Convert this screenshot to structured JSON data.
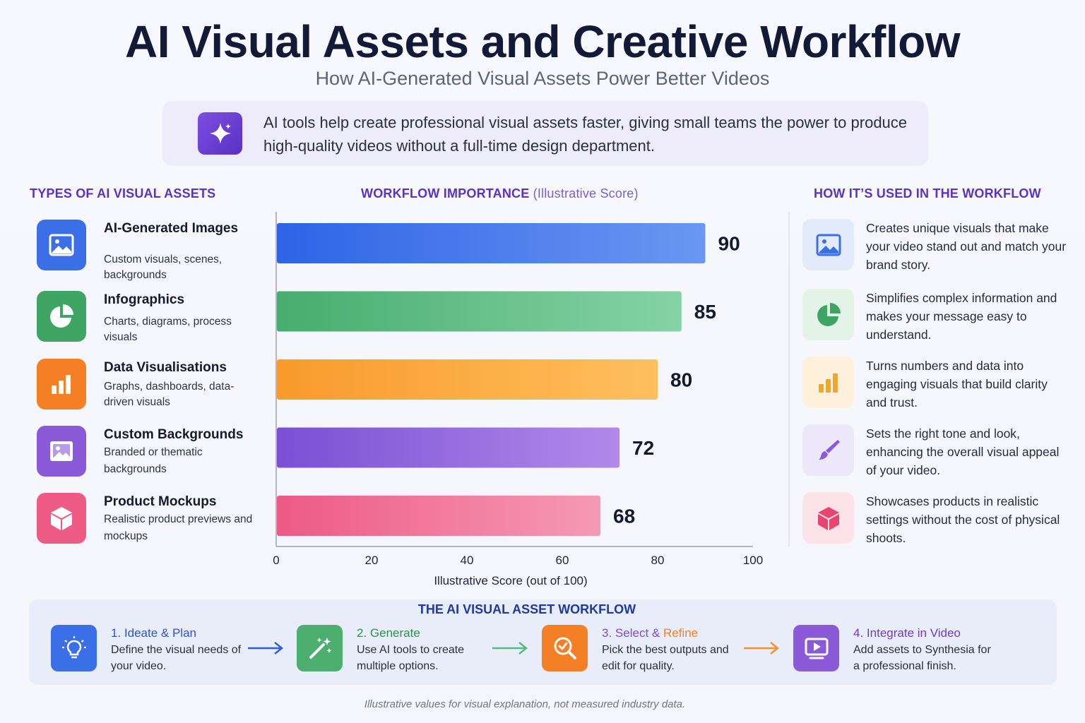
{
  "header": {
    "title": "AI Visual Assets and Creative Workflow",
    "subtitle": "How AI-Generated Visual Assets Power Better Videos",
    "intro": "AI tools help create professional visual assets faster, giving small teams the power to produce high-quality videos without a full-time design department."
  },
  "left": {
    "heading": "TYPES OF AI VISUAL ASSETS",
    "items": [
      {
        "name": "AI-Generated Images",
        "desc": "Custom visuals, scenes, backgrounds",
        "icon": "image-icon",
        "color": "#3b6fe8"
      },
      {
        "name": "Infographics",
        "desc": "Charts, diagrams, process visuals",
        "icon": "pie-chart-icon",
        "color": "#3fa564"
      },
      {
        "name": "Data Visualisations",
        "desc": "Graphs, dashboards, data-driven visuals",
        "icon": "bar-chart-icon",
        "color": "#f57f24"
      },
      {
        "name": "Custom Backgrounds",
        "desc": "Branded or thematic backgrounds",
        "icon": "background-image-icon",
        "color": "#8a5ad8"
      },
      {
        "name": "Product Mockups",
        "desc": "Realistic product previews and mockups",
        "icon": "box-icon",
        "color": "#ee5c86"
      }
    ]
  },
  "chart_heading": {
    "bold": "WORKFLOW IMPORTANCE",
    "light": "(Illustrative Score)"
  },
  "chart_data": {
    "type": "bar",
    "orientation": "horizontal",
    "categories": [
      "AI-Generated Images",
      "Infographics",
      "Data Visualisations",
      "Custom Backgrounds",
      "Product Mockups"
    ],
    "values": [
      90,
      85,
      80,
      72,
      68
    ],
    "data_labels": [
      "90",
      "85",
      "80",
      "72",
      "68"
    ],
    "colors": [
      [
        "#2f63e6",
        "#6a97f2"
      ],
      [
        "#47ad6e",
        "#86d3a4"
      ],
      [
        "#f99a2c",
        "#ffbf5e"
      ],
      [
        "#7a4fd4",
        "#b289ea"
      ],
      [
        "#ee5a84",
        "#f59ab6"
      ]
    ],
    "xlim": [
      0,
      100
    ],
    "xticks": [
      "0",
      "20",
      "40",
      "60",
      "80",
      "100"
    ],
    "xlabel": "Illustrative Score (out of 100)",
    "grid": false
  },
  "right": {
    "heading": "HOW IT’S USED IN THE WORKFLOW",
    "items": [
      {
        "text": "Creates unique visuals that make your video stand out and match your brand story.",
        "icon": "image-icon",
        "bg": "#e3ebfb",
        "color": "#3b6fe8"
      },
      {
        "text": "Simplifies complex information and makes your message easy to understand.",
        "icon": "pie-chart-icon",
        "bg": "#e3f3e8",
        "color": "#3fa564"
      },
      {
        "text": "Turns numbers and data into engaging visuals that build clarity and trust.",
        "icon": "bar-chart-icon",
        "bg": "#fdf1dc",
        "color": "#f5a623"
      },
      {
        "text": "Sets the right tone and look, enhancing the overall visual appeal of your video.",
        "icon": "brush-icon",
        "bg": "#ede7fa",
        "color": "#8a5ad8"
      },
      {
        "text": "Showcases products in realistic settings without the cost of physical shoots.",
        "icon": "box-icon",
        "bg": "#fce3ea",
        "color": "#e8466f"
      }
    ]
  },
  "workflow": {
    "heading": "THE AI VISUAL ASSET WORKFLOW",
    "steps": [
      {
        "num": "1.",
        "title": "Ideate & Plan",
        "title2": "",
        "desc": "Define the visual needs of your video.",
        "icon": "lightbulb-icon",
        "color": "#3b6fe8",
        "titleColor": "#2b56cf"
      },
      {
        "num": "2.",
        "title": "Generate",
        "title2": "",
        "desc": "Use AI tools to create multiple options.",
        "icon": "magic-wand-icon",
        "color": "#4cae6f",
        "titleColor": "#2f8f52"
      },
      {
        "num": "3.",
        "title": "Select &",
        "title2": "Refine",
        "desc": "Pick the best outputs and edit for quality.",
        "icon": "magnifier-check-icon",
        "color": "#f57f24",
        "titleColor": "#7a4fd4",
        "title2Color": "#f57f24"
      },
      {
        "num": "4.",
        "title": "Integrate in Video",
        "title2": "",
        "desc": "Add assets to Synthesia for a professional finish.",
        "icon": "video-play-icon",
        "color": "#8a5ad8",
        "titleColor": "#6a3ec8"
      }
    ],
    "arrow_colors": [
      "#2f5fe0",
      "#5ab97e",
      "#f5922e"
    ]
  },
  "footnote": "Illustrative values for visual explanation, not measured industry data."
}
